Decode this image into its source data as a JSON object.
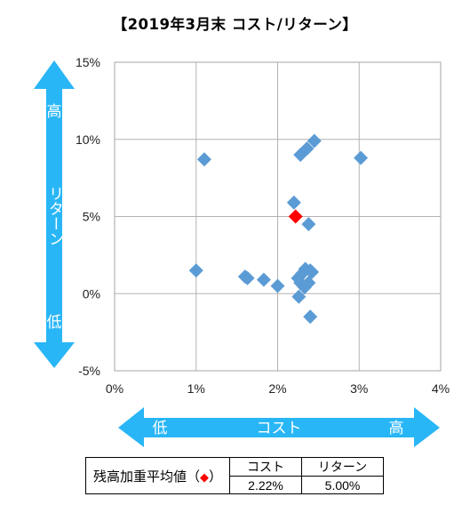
{
  "chart_data": {
    "type": "scatter",
    "title": "【2019年3月末 コスト/リターン】",
    "xlabel": "コスト",
    "ylabel": "リターン",
    "x_axis_low": "低",
    "x_axis_high": "高",
    "y_axis_low": "低",
    "y_axis_high": "高",
    "xlim": [
      0,
      4
    ],
    "ylim": [
      -5,
      15
    ],
    "x_ticks": [
      0,
      1,
      2,
      3,
      4
    ],
    "x_tick_labels": [
      "0%",
      "1%",
      "2%",
      "3%",
      "4%"
    ],
    "y_ticks": [
      -5,
      0,
      5,
      10,
      15
    ],
    "y_tick_labels": [
      "-5%",
      "0%",
      "5%",
      "10%",
      "15%"
    ],
    "grid": true,
    "series": [
      {
        "color": "#5b9bd5",
        "marker": "diamond",
        "points": [
          [
            1.1,
            8.7
          ],
          [
            2.28,
            9.0
          ],
          [
            2.36,
            9.4
          ],
          [
            2.45,
            9.9
          ],
          [
            3.02,
            8.8
          ],
          [
            2.2,
            5.9
          ],
          [
            2.38,
            4.5
          ],
          [
            1.0,
            1.5
          ],
          [
            1.6,
            1.1
          ],
          [
            1.63,
            1.0
          ],
          [
            1.83,
            0.9
          ],
          [
            2.0,
            0.5
          ],
          [
            2.25,
            1.0
          ],
          [
            2.3,
            1.3
          ],
          [
            2.34,
            1.6
          ],
          [
            2.4,
            1.5
          ],
          [
            2.42,
            1.4
          ],
          [
            2.28,
            0.7
          ],
          [
            2.33,
            0.4
          ],
          [
            2.38,
            0.7
          ],
          [
            2.26,
            -0.2
          ],
          [
            2.4,
            -1.5
          ]
        ]
      },
      {
        "name": "残高加重平均値",
        "color": "#ff0000",
        "marker": "diamond",
        "points": [
          [
            2.22,
            5.0
          ]
        ]
      }
    ],
    "summary_table": {
      "row_label": "残高加重平均値（",
      "row_label_marker": "◆",
      "row_label_end": "）",
      "headers": [
        "コスト",
        "リターン"
      ],
      "values": [
        "2.22%",
        "5.00%"
      ]
    }
  }
}
